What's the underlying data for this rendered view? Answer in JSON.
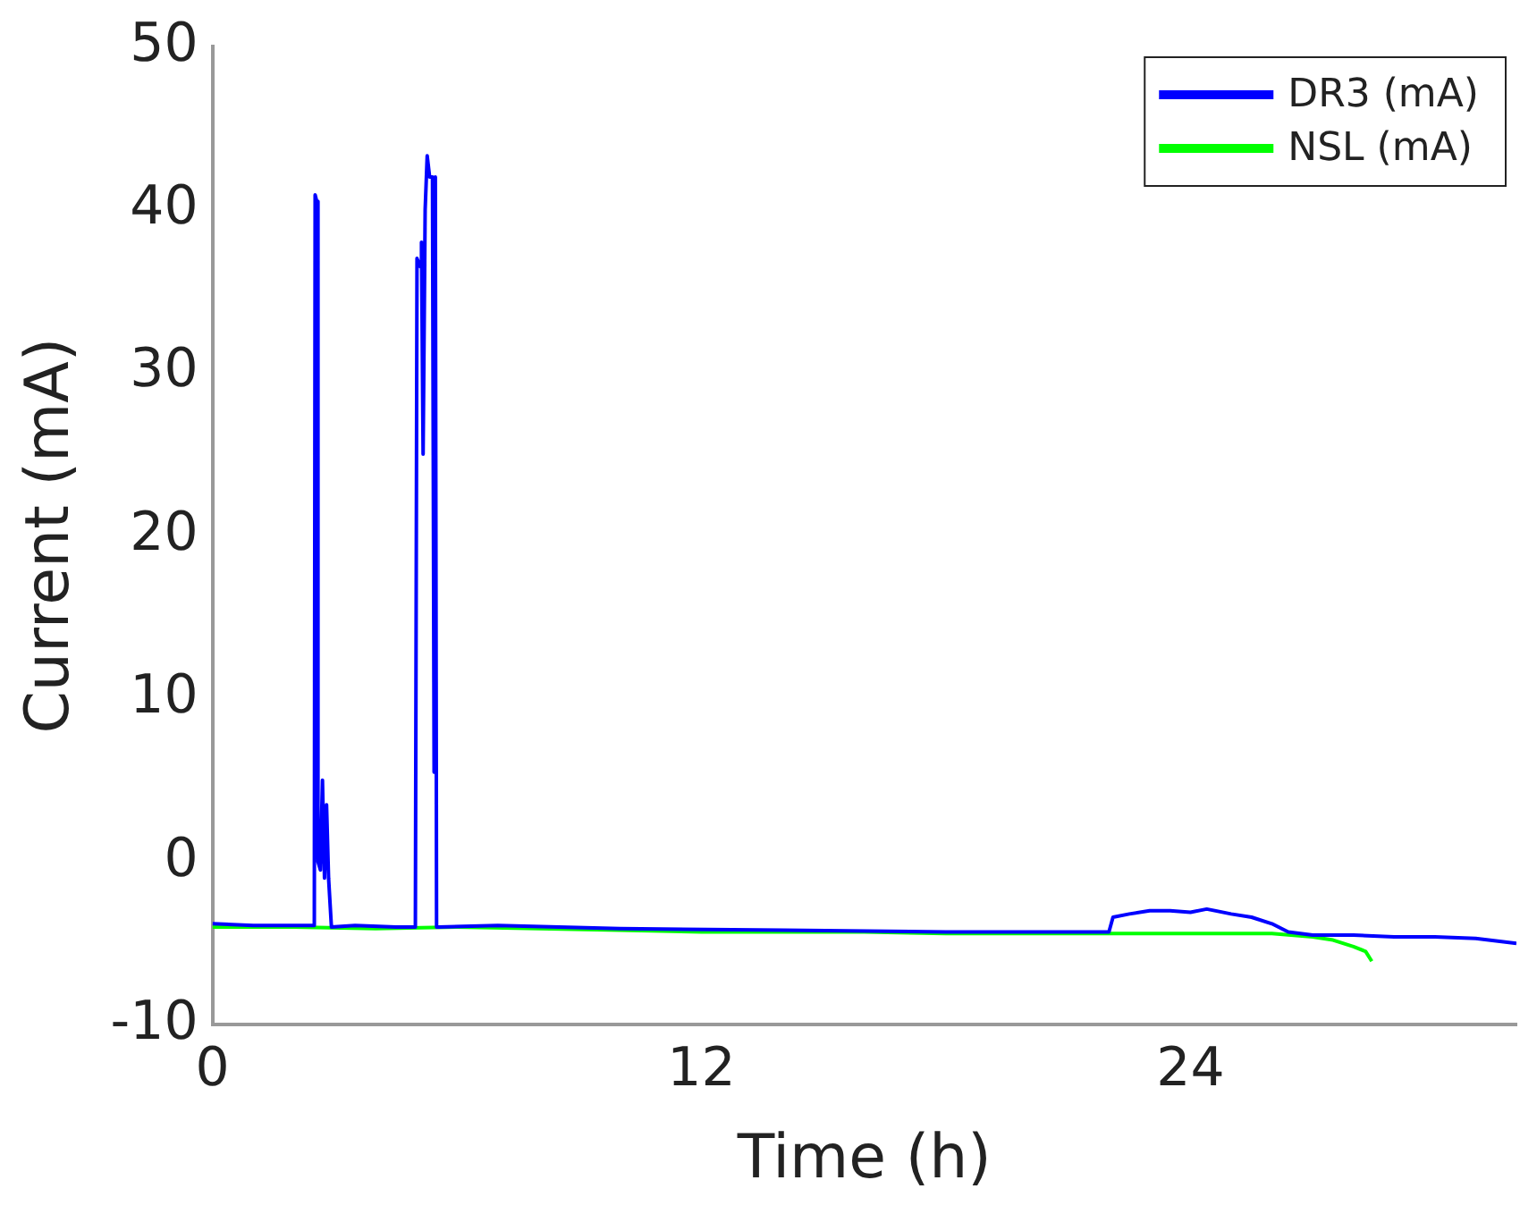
{
  "chart_data": {
    "type": "line",
    "xlabel": "Time (h)",
    "ylabel": "Current (mA)",
    "xlim": [
      0,
      32
    ],
    "xticks": [
      0,
      12,
      24
    ],
    "ylim": [
      -10,
      50
    ],
    "yticks": [
      -10,
      0,
      10,
      20,
      30,
      40,
      50
    ],
    "grid": false,
    "legend": "top right",
    "marker": "none",
    "line_style": "solid",
    "series": [
      {
        "name": "DR3 (mA)",
        "color": "#0000ff",
        "x": [
          0,
          1,
          2,
          2.5,
          2.52,
          2.56,
          2.59,
          2.65,
          2.7,
          2.75,
          2.8,
          2.85,
          2.92,
          3.5,
          4.5,
          4.98,
          5.02,
          5.1,
          5.13,
          5.17,
          5.22,
          5.27,
          5.33,
          5.4,
          5.44,
          5.47,
          5.5,
          5.55,
          7,
          10,
          14,
          18,
          22,
          22.1,
          22.5,
          23,
          23.5,
          24,
          24.4,
          25,
          25.5,
          26,
          26.4,
          27,
          28,
          29,
          30,
          31,
          32
        ],
        "values": [
          -3.8,
          -3.9,
          -3.9,
          -3.9,
          40.9,
          40.5,
          0,
          -0.5,
          5,
          -1,
          3.5,
          -1,
          -4,
          -3.9,
          -4,
          -4,
          37,
          36.5,
          38,
          25,
          40,
          43.3,
          42,
          42,
          5.5,
          42,
          -4,
          -4,
          -3.9,
          -4.1,
          -4.2,
          -4.3,
          -4.3,
          -3.4,
          -3.2,
          -3,
          -3,
          -3.1,
          -2.9,
          -3.2,
          -3.4,
          -3.8,
          -4.3,
          -4.5,
          -4.5,
          -4.6,
          -4.6,
          -4.7,
          -5
        ]
      },
      {
        "name": "NSL (mA)",
        "color": "#00ff00",
        "x": [
          0,
          2,
          4,
          6,
          8,
          10,
          12,
          14,
          16,
          18,
          20,
          22,
          24,
          26,
          27,
          27.5,
          28,
          28.3,
          28.45
        ],
        "values": [
          -4,
          -4,
          -4.1,
          -4,
          -4.1,
          -4.2,
          -4.3,
          -4.3,
          -4.3,
          -4.4,
          -4.4,
          -4.4,
          -4.4,
          -4.4,
          -4.6,
          -4.8,
          -5.2,
          -5.5,
          -6.1
        ]
      }
    ]
  }
}
